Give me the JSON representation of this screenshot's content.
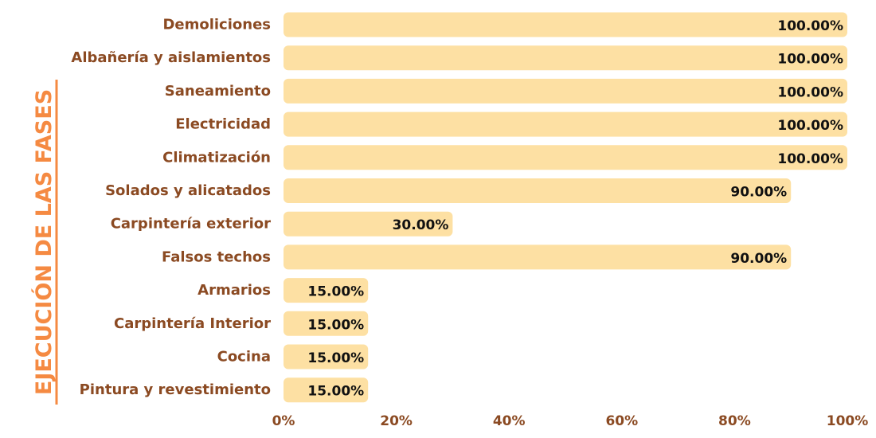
{
  "colors": {
    "bar": "#fde0a3",
    "label": "#8b4a22",
    "value_text": "#111111",
    "accent": "#f58a42"
  },
  "chart_data": {
    "type": "bar",
    "orientation": "horizontal",
    "title": "",
    "ylabel": "EJECUCIÓN DE LAS FASES",
    "xlabel": "",
    "categories": [
      "Demoliciones",
      "Albañería y aislamientos",
      "Saneamiento",
      "Electricidad",
      "Climatización",
      "Solados y alicatados",
      "Carpintería exterior",
      "Falsos techos",
      "Armarios",
      "Carpintería Interior",
      "Cocina",
      "Pintura y revestimiento"
    ],
    "values": [
      100,
      100,
      100,
      100,
      100,
      90,
      30,
      90,
      15,
      15,
      15,
      15
    ],
    "value_labels": [
      "100.00%",
      "100.00%",
      "100.00%",
      "100.00%",
      "100.00%",
      "90.00%",
      "30.00%",
      "90.00%",
      "15.00%",
      "15.00%",
      "15.00%",
      "15.00%"
    ],
    "xlim": [
      0,
      100
    ],
    "xticks": [
      0,
      20,
      40,
      60,
      80,
      100
    ],
    "xtick_labels": [
      "0%",
      "20%",
      "40%",
      "60%",
      "80%",
      "100%"
    ],
    "grid": false,
    "legend": "none"
  }
}
